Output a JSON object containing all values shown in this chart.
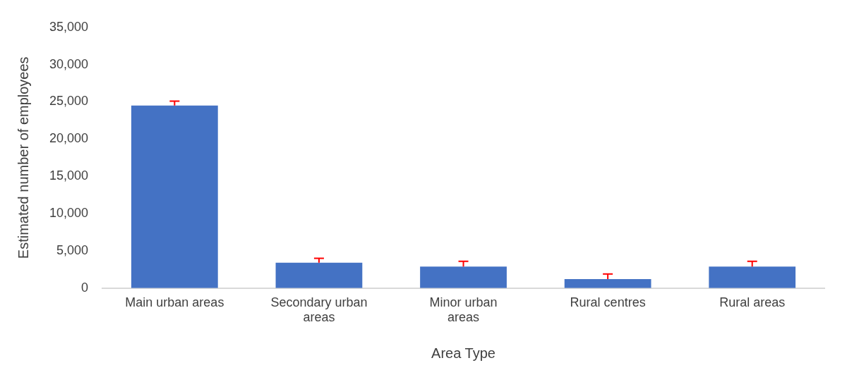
{
  "chart_data": {
    "type": "bar",
    "xlabel": "Area Type",
    "ylabel": "Estimated number of employees",
    "categories": [
      "Main urban areas",
      "Secondary urban areas",
      "Minor urban areas",
      "Rural centres",
      "Rural areas"
    ],
    "values": [
      24500,
      3400,
      2900,
      1200,
      2900
    ],
    "errors": [
      [
        24500,
        25100
      ],
      [
        3400,
        4000
      ],
      [
        2900,
        3600
      ],
      [
        1200,
        1900
      ],
      [
        2900,
        3600
      ]
    ],
    "color": "#4472c4",
    "ylim": [
      0,
      35000
    ],
    "yticks": [
      0,
      {
        "value": 5000,
        "label": "5,000"
      },
      {
        "value": 10000,
        "label": "10,000"
      },
      {
        "value": 15000,
        "label": "15,000"
      },
      {
        "value": 20000,
        "label": "20,000"
      },
      {
        "value": 25000,
        "label": "25,000"
      },
      {
        "value": 30000,
        "label": "30,000"
      },
      {
        "value": 35000,
        "label": "35,000"
      }
    ],
    "grid": false,
    "legend": false
  }
}
